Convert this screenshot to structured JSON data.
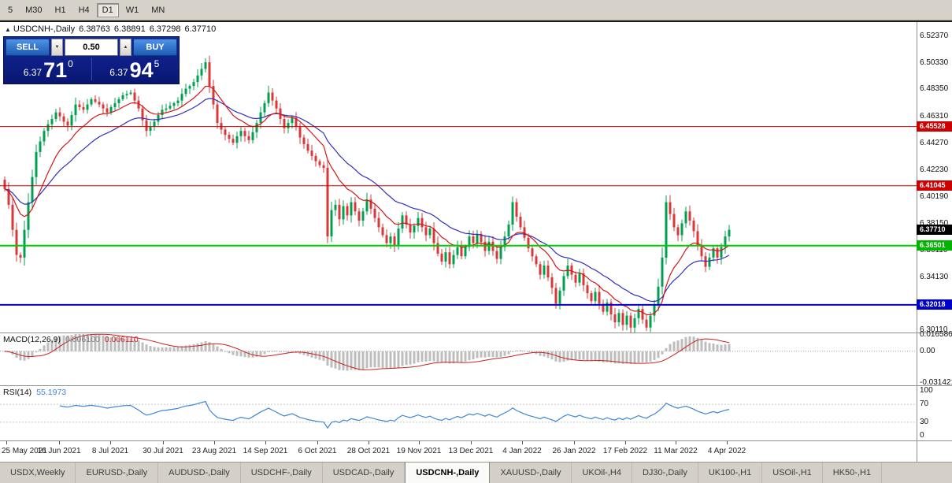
{
  "toolbar": {
    "buttons": [
      "5",
      "M30",
      "H1",
      "H4",
      "D1",
      "W1",
      "MN"
    ],
    "active": "D1"
  },
  "chart": {
    "header": {
      "collapse_icon": "▲",
      "title": "USDCNH-,Daily",
      "open": "6.38763",
      "high": "6.38891",
      "low": "6.37298",
      "close": "6.37710"
    },
    "trade_panel": {
      "sell_label": "SELL",
      "buy_label": "BUY",
      "volume": "0.50",
      "spin_down_icon": "▼",
      "spin_up_icon": "▲",
      "sell_price_prefix": "6.37",
      "sell_price_big": "71",
      "sell_price_sup": "0",
      "buy_price_prefix": "6.37",
      "buy_price_big": "94",
      "buy_price_sup": "5"
    },
    "price_axis_labels": [
      "6.52370",
      "6.50330",
      "6.48350",
      "6.46310",
      "6.44270",
      "6.42230",
      "6.40190",
      "6.38150",
      "6.36110",
      "6.34130",
      "6.32090",
      "6.30110"
    ],
    "levels": [
      {
        "label": "6.45528",
        "price": 6.45528,
        "color": "#cc0000",
        "tag_bg": "#cc0000",
        "width": 1
      },
      {
        "label": "6.41045",
        "price": 6.41045,
        "color": "#cc0000",
        "tag_bg": "#cc0000",
        "width": 1
      },
      {
        "label": "6.36501",
        "price": 6.36501,
        "color": "#00ce00",
        "tag_bg": "#00b400",
        "width": 2
      },
      {
        "label": "6.32018",
        "price": 6.32018,
        "color": "#0000d2",
        "tag_bg": "#0000c8",
        "width": 2
      }
    ],
    "current_price_tag": {
      "label": "6.37710",
      "price": 6.3771,
      "tag_bg": "#000000"
    }
  },
  "macd_panel": {
    "title": "MACD(12,26,9)",
    "value_main": "0.006100",
    "value_signal": "0.006110",
    "axis": [
      {
        "label": "0.016586",
        "value": 0.016586
      },
      {
        "label": "0.00",
        "value": 0
      },
      {
        "label": "-0.031421",
        "value": -0.031421
      }
    ]
  },
  "rsi_panel": {
    "title": "RSI(14)",
    "value": "55.1973",
    "axis": [
      {
        "label": "100",
        "value": 100
      },
      {
        "label": "70",
        "value": 70
      },
      {
        "label": "30",
        "value": 30
      },
      {
        "label": "0",
        "value": 0
      }
    ],
    "levels": [
      70,
      30
    ]
  },
  "date_axis": [
    "25 May 2021",
    "16 Jun 2021",
    "8 Jul 2021",
    "30 Jul 2021",
    "23 Aug 2021",
    "14 Sep 2021",
    "6 Oct 2021",
    "28 Oct 2021",
    "19 Nov 2021",
    "13 Dec 2021",
    "4 Jan 2022",
    "26 Jan 2022",
    "17 Feb 2022",
    "11 Mar 2022",
    "4 Apr 2022"
  ],
  "tab_bar": {
    "tabs": [
      "USDX,Weekly",
      "EURUSD-,Daily",
      "AUDUSD-,Daily",
      "USDCHF-,Daily",
      "USDCAD-,Daily",
      "USDCNH-,Daily",
      "XAUUSD-,Daily",
      "UKOil-,H4",
      "DJ30-,Daily",
      "UK100-,H1",
      "USOil-,H1",
      "HK50-,H1"
    ],
    "active_index": 5
  },
  "colors": {
    "up": "#00a050",
    "down": "#d83838",
    "ma_fast": "#d41616",
    "ma_slow": "#3030bb",
    "macd_hist": "#bdbdbd",
    "macd_signal": "#cc2222",
    "rsi_line": "#3e86d6"
  },
  "chart_data": {
    "type": "candlestick",
    "symbol": "USDCNH-",
    "timeframe": "Daily",
    "title": "USDCNH-,Daily",
    "ohlc_current": {
      "open": 6.38763,
      "high": 6.38891,
      "low": 6.37298,
      "close": 6.3771
    },
    "bid": 6.3771,
    "ask": 6.37945,
    "y_axis_ticks": [
      6.5237,
      6.5033,
      6.4835,
      6.4631,
      6.4427,
      6.4223,
      6.4019,
      6.3815,
      6.3611,
      6.3413,
      6.3209,
      6.3011
    ],
    "x_labels": [
      "25 May 2021",
      "16 Jun 2021",
      "8 Jul 2021",
      "30 Jul 2021",
      "23 Aug 2021",
      "14 Sep 2021",
      "6 Oct 2021",
      "28 Oct 2021",
      "19 Nov 2021",
      "13 Dec 2021",
      "4 Jan 2022",
      "26 Jan 2022",
      "17 Feb 2022",
      "11 Mar 2022",
      "4 Apr 2022"
    ],
    "horizontal_levels": [
      6.45528,
      6.41045,
      6.36501,
      6.32018
    ],
    "first_open": 6.415,
    "closes": [
      6.408,
      6.396,
      6.377,
      6.358,
      6.356,
      6.377,
      6.398,
      6.417,
      6.436,
      6.444,
      6.452,
      6.457,
      6.461,
      6.466,
      6.463,
      6.459,
      6.456,
      6.464,
      6.472,
      6.47,
      6.468,
      6.472,
      6.476,
      6.474,
      6.472,
      6.469,
      6.466,
      6.47,
      6.473,
      6.476,
      6.479,
      6.48,
      6.481,
      6.475,
      6.469,
      6.46,
      6.452,
      6.455,
      6.459,
      6.464,
      6.468,
      6.469,
      6.471,
      6.473,
      6.475,
      6.48,
      6.484,
      6.486,
      6.489,
      6.494,
      6.499,
      6.504,
      6.486,
      6.472,
      6.458,
      6.453,
      6.449,
      6.446,
      6.443,
      6.448,
      6.452,
      6.448,
      6.445,
      6.451,
      6.458,
      6.466,
      6.473,
      6.481,
      6.475,
      6.469,
      6.461,
      6.454,
      6.458,
      6.462,
      6.455,
      6.447,
      6.442,
      6.437,
      6.433,
      6.429,
      6.426,
      6.424,
      6.372,
      6.392,
      6.396,
      6.385,
      6.395,
      6.388,
      6.398,
      6.391,
      6.384,
      6.391,
      6.4,
      6.393,
      6.386,
      6.379,
      6.373,
      6.367,
      6.372,
      6.365,
      6.378,
      6.388,
      6.381,
      6.375,
      6.38,
      6.386,
      6.379,
      6.373,
      6.378,
      6.367,
      6.359,
      6.353,
      6.36,
      6.351,
      6.358,
      6.364,
      6.357,
      6.364,
      6.372,
      6.367,
      6.374,
      6.368,
      6.361,
      6.368,
      6.361,
      6.355,
      6.364,
      6.372,
      6.381,
      6.398,
      6.387,
      6.379,
      6.371,
      6.363,
      6.357,
      6.351,
      6.343,
      6.35,
      6.341,
      6.333,
      6.321,
      6.331,
      6.342,
      6.35,
      6.343,
      6.337,
      6.344,
      6.335,
      6.329,
      6.323,
      6.33,
      6.321,
      6.315,
      6.322,
      6.313,
      6.307,
      6.314,
      6.305,
      6.312,
      6.303,
      6.31,
      6.317,
      6.309,
      6.303,
      6.312,
      6.32,
      6.334,
      6.356,
      6.398,
      6.389,
      6.379,
      6.373,
      6.382,
      6.391,
      6.384,
      6.376,
      6.365,
      6.357,
      6.349,
      6.356,
      6.363,
      6.356,
      6.364,
      6.372,
      6.3771
    ],
    "indicators": {
      "macd": {
        "fast": 12,
        "slow": 26,
        "signal": 9,
        "current_main": 0.0061,
        "current_signal": 0.00611,
        "scale_max": 0.016586,
        "scale_min": -0.031421
      },
      "rsi": {
        "period": 14,
        "current": 55.1973,
        "scale": [
          0,
          100
        ],
        "levels": [
          70,
          30
        ]
      }
    }
  }
}
